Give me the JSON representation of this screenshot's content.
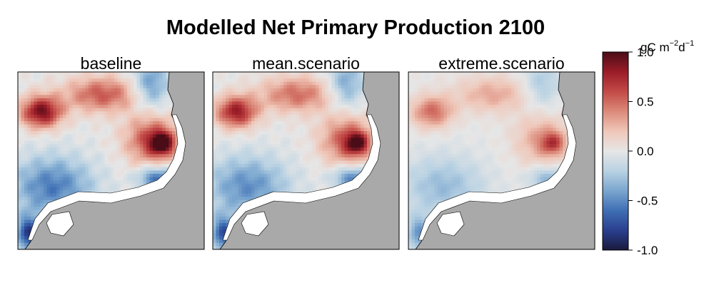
{
  "chart_data": {
    "type": "heatmap",
    "title": "Modelled Net Primary Production 2100",
    "panels": [
      {
        "name": "baseline",
        "intensity": 1.0
      },
      {
        "name": "mean.scenario",
        "intensity": 0.88
      },
      {
        "name": "extreme.scenario",
        "intensity": 0.55
      }
    ],
    "colorbar": {
      "unit_base": "gC m",
      "unit_exp1": "−2",
      "unit_mid": "d",
      "unit_exp2": "−1",
      "vmin": -1.0,
      "vmax": 1.0,
      "ticks": [
        {
          "value": 1.0,
          "label": "1.0"
        },
        {
          "value": 0.5,
          "label": "0.5"
        },
        {
          "value": 0.0,
          "label": "0.0"
        },
        {
          "value": -0.5,
          "label": "-0.5"
        },
        {
          "value": -1.0,
          "label": "-1.0"
        }
      ],
      "colors": [
        "#1a1a3d",
        "#2a3f8f",
        "#3f6fb5",
        "#7aa6cf",
        "#b9d2e3",
        "#e6e6e6",
        "#efc7b9",
        "#dc8a7a",
        "#c24a47",
        "#9a1c27",
        "#4a0d17"
      ]
    },
    "land_color": "#a9a9a9",
    "coast_water_color": "#ffffff"
  }
}
